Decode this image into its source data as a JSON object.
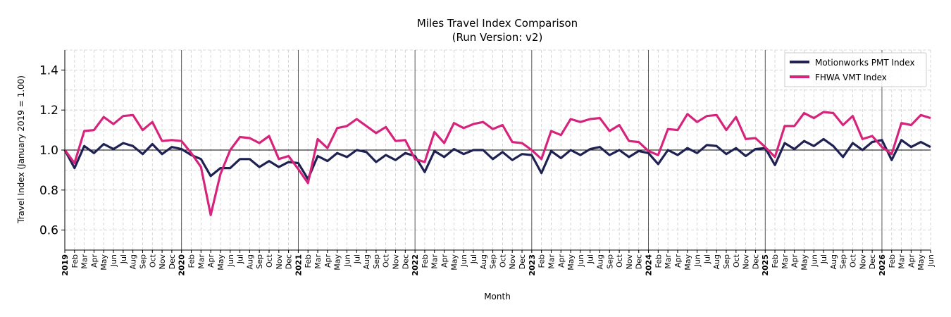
{
  "chart_data": {
    "type": "line",
    "title": "Miles Travel Index Comparison",
    "subtitle": "(Run Version: v2)",
    "xlabel": "Month",
    "ylabel": "Travel Index (January 2019 = 1.00)",
    "ylim": [
      0.5,
      1.5
    ],
    "yticks": [
      "0.6",
      "0.8",
      "1.0",
      "1.2",
      "1.4"
    ],
    "reference_line": 1.0,
    "grid": true,
    "legend_position": "top-right",
    "years": [
      "2019",
      "2020",
      "2021",
      "2022",
      "2023",
      "2024",
      "2025",
      "2026"
    ],
    "month_labels": [
      "Feb",
      "Mar",
      "Apr",
      "May",
      "Jun",
      "Jul",
      "Aug",
      "Sep",
      "Oct",
      "Nov",
      "Dec"
    ],
    "months": [
      "2019-01",
      "2019-02",
      "2019-03",
      "2019-04",
      "2019-05",
      "2019-06",
      "2019-07",
      "2019-08",
      "2019-09",
      "2019-10",
      "2019-11",
      "2019-12",
      "2020-01",
      "2020-02",
      "2020-03",
      "2020-04",
      "2020-05",
      "2020-06",
      "2020-07",
      "2020-08",
      "2020-09",
      "2020-10",
      "2020-11",
      "2020-12",
      "2021-01",
      "2021-02",
      "2021-03",
      "2021-04",
      "2021-05",
      "2021-06",
      "2021-07",
      "2021-08",
      "2021-09",
      "2021-10",
      "2021-11",
      "2021-12",
      "2022-01",
      "2022-02",
      "2022-03",
      "2022-04",
      "2022-05",
      "2022-06",
      "2022-07",
      "2022-08",
      "2022-09",
      "2022-10",
      "2022-11",
      "2022-12",
      "2023-01",
      "2023-02",
      "2023-03",
      "2023-04",
      "2023-05",
      "2023-06",
      "2023-07",
      "2023-08",
      "2023-09",
      "2023-10",
      "2023-11",
      "2023-12",
      "2024-01",
      "2024-02",
      "2024-03",
      "2024-04",
      "2024-05",
      "2024-06",
      "2024-07",
      "2024-08",
      "2024-09",
      "2024-10",
      "2024-11",
      "2024-12",
      "2025-01",
      "2025-02",
      "2025-03",
      "2025-04",
      "2025-05",
      "2025-06",
      "2025-07",
      "2025-08",
      "2025-09",
      "2025-10",
      "2025-11",
      "2025-12",
      "2026-01",
      "2026-02",
      "2026-03",
      "2026-04",
      "2026-05",
      "2026-06"
    ],
    "series": [
      {
        "name": "Motionworks PMT Index",
        "color": "#1f2152",
        "values": [
          1.0,
          0.91,
          1.02,
          0.985,
          1.03,
          1.005,
          1.035,
          1.02,
          0.98,
          1.03,
          0.98,
          1.015,
          1.005,
          0.975,
          0.955,
          0.87,
          0.91,
          0.91,
          0.955,
          0.955,
          0.915,
          0.945,
          0.915,
          0.94,
          0.935,
          0.855,
          0.97,
          0.945,
          0.985,
          0.965,
          1.0,
          0.99,
          0.94,
          0.975,
          0.95,
          0.985,
          0.97,
          0.89,
          0.995,
          0.965,
          1.005,
          0.98,
          1.0,
          1.0,
          0.955,
          0.99,
          0.95,
          0.98,
          0.975,
          0.885,
          0.995,
          0.96,
          1.0,
          0.975,
          1.005,
          1.015,
          0.975,
          1.0,
          0.965,
          0.995,
          0.985,
          0.93,
          1.0,
          0.975,
          1.01,
          0.985,
          1.025,
          1.02,
          0.98,
          1.01,
          0.97,
          1.005,
          1.01,
          0.925,
          1.035,
          1.005,
          1.045,
          1.02,
          1.055,
          1.02,
          0.965,
          1.035,
          1.0,
          1.04,
          1.05,
          0.95,
          1.05,
          1.015,
          1.04,
          1.015
        ]
      },
      {
        "name": "FHWA VMT Index",
        "color": "#d6247d",
        "values": [
          1.0,
          0.935,
          1.095,
          1.1,
          1.165,
          1.13,
          1.17,
          1.175,
          1.1,
          1.14,
          1.045,
          1.05,
          1.045,
          0.985,
          0.915,
          0.675,
          0.88,
          1.0,
          1.065,
          1.06,
          1.035,
          1.07,
          0.955,
          0.97,
          0.905,
          0.835,
          1.055,
          1.01,
          1.11,
          1.12,
          1.155,
          1.12,
          1.085,
          1.115,
          1.045,
          1.05,
          0.955,
          0.94,
          1.09,
          1.035,
          1.135,
          1.11,
          1.13,
          1.14,
          1.105,
          1.125,
          1.04,
          1.035,
          1.0,
          0.955,
          1.095,
          1.075,
          1.155,
          1.14,
          1.155,
          1.16,
          1.095,
          1.125,
          1.045,
          1.04,
          0.995,
          0.975,
          1.105,
          1.1,
          1.18,
          1.14,
          1.17,
          1.175,
          1.1,
          1.165,
          1.055,
          1.06,
          1.015,
          0.965,
          1.12,
          1.12,
          1.185,
          1.16,
          1.19,
          1.185,
          1.125,
          1.17,
          1.055,
          1.07,
          1.015,
          0.98,
          1.135,
          1.125,
          1.175,
          1.16
        ]
      }
    ]
  }
}
